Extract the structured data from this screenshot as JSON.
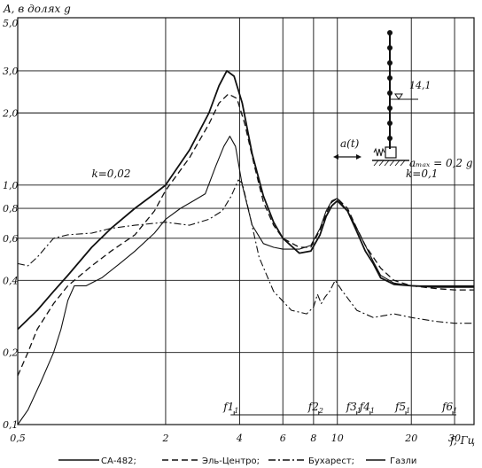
{
  "chart_data": {
    "type": "line",
    "x_scale": "log",
    "y_scale": "log",
    "xlim": [
      0.5,
      36
    ],
    "ylim": [
      0.1,
      5.0
    ],
    "ylabel": "A, в долях g",
    "xlabel": "f, Гц",
    "x_ticks": [
      {
        "v": 0.5,
        "label": "0,5"
      },
      {
        "v": 2,
        "label": "2"
      },
      {
        "v": 4,
        "label": "4"
      },
      {
        "v": 6,
        "label": "6"
      },
      {
        "v": 8,
        "label": "8"
      },
      {
        "v": 10,
        "label": "10"
      },
      {
        "v": 20,
        "label": "20"
      },
      {
        "v": 30,
        "label": "30"
      }
    ],
    "x_grid": [
      0.5,
      2,
      4,
      6,
      8,
      10,
      20,
      30
    ],
    "y_ticks": [
      {
        "v": 0.1,
        "label": "0,1"
      },
      {
        "v": 0.2,
        "label": "0,2"
      },
      {
        "v": 0.4,
        "label": "0,4"
      },
      {
        "v": 0.6,
        "label": "0,6"
      },
      {
        "v": 0.8,
        "label": "0,8"
      },
      {
        "v": 1.0,
        "label": "1,0"
      },
      {
        "v": 2.0,
        "label": "2,0"
      },
      {
        "v": 3.0,
        "label": "3,0"
      },
      {
        "v": 5.0,
        "label": "5,0"
      }
    ],
    "y_grid": [
      0.2,
      0.4,
      0.6,
      0.8,
      1.0,
      2.0,
      3.0,
      5.0
    ],
    "annotations": [
      {
        "text": "k=0,02",
        "x": 1.0,
        "y": 1.08
      },
      {
        "text": "k=0,1",
        "x": 19,
        "y": 1.08
      }
    ],
    "frequency_marks": {
      "labels": [
        "f1",
        "f2",
        "f3",
        "f4",
        "f5",
        "f6"
      ],
      "subscripts": [
        "1",
        "2",
        "1",
        "1",
        "1",
        "1"
      ],
      "x": [
        3.8,
        8.4,
        12.0,
        13.6,
        19.0,
        29.5
      ]
    },
    "inset": {
      "force_label": "a(t)",
      "amax_label": "aₘₐₓ = 0,2 g",
      "height_label": "14,1"
    },
    "legend": [
      "СА-482;",
      "Эль-Центро;",
      "Бухарест;",
      "Газли"
    ],
    "series": [
      {
        "name": "СА-482",
        "style": "solid",
        "width": 1.8,
        "points": [
          [
            0.5,
            0.25
          ],
          [
            0.6,
            0.3
          ],
          [
            0.7,
            0.36
          ],
          [
            0.8,
            0.42
          ],
          [
            1.0,
            0.55
          ],
          [
            1.2,
            0.66
          ],
          [
            1.5,
            0.8
          ],
          [
            1.8,
            0.92
          ],
          [
            2.0,
            1.0
          ],
          [
            2.5,
            1.4
          ],
          [
            3.0,
            2.0
          ],
          [
            3.3,
            2.6
          ],
          [
            3.55,
            3.0
          ],
          [
            3.8,
            2.85
          ],
          [
            4.1,
            2.2
          ],
          [
            4.5,
            1.35
          ],
          [
            5.0,
            0.9
          ],
          [
            5.5,
            0.7
          ],
          [
            6.0,
            0.6
          ],
          [
            7.0,
            0.52
          ],
          [
            7.8,
            0.53
          ],
          [
            8.5,
            0.62
          ],
          [
            9.0,
            0.74
          ],
          [
            9.5,
            0.82
          ],
          [
            10.0,
            0.86
          ],
          [
            11.0,
            0.78
          ],
          [
            12.0,
            0.64
          ],
          [
            13.0,
            0.53
          ],
          [
            14.0,
            0.47
          ],
          [
            15.0,
            0.41
          ],
          [
            17.0,
            0.385
          ],
          [
            20.0,
            0.38
          ],
          [
            25.0,
            0.375
          ],
          [
            30.0,
            0.375
          ],
          [
            36.0,
            0.375
          ]
        ]
      },
      {
        "name": "Эль-Центро",
        "style": "dashed",
        "width": 1.3,
        "points": [
          [
            0.5,
            0.16
          ],
          [
            0.55,
            0.2
          ],
          [
            0.6,
            0.25
          ],
          [
            0.7,
            0.32
          ],
          [
            0.8,
            0.38
          ],
          [
            1.0,
            0.46
          ],
          [
            1.2,
            0.53
          ],
          [
            1.5,
            0.62
          ],
          [
            1.8,
            0.78
          ],
          [
            2.0,
            0.95
          ],
          [
            2.5,
            1.3
          ],
          [
            3.0,
            1.8
          ],
          [
            3.3,
            2.2
          ],
          [
            3.6,
            2.4
          ],
          [
            3.9,
            2.3
          ],
          [
            4.2,
            1.8
          ],
          [
            4.6,
            1.2
          ],
          [
            5.0,
            0.85
          ],
          [
            5.5,
            0.68
          ],
          [
            6.0,
            0.6
          ],
          [
            7.0,
            0.55
          ],
          [
            7.8,
            0.55
          ],
          [
            8.5,
            0.65
          ],
          [
            9.0,
            0.76
          ],
          [
            9.5,
            0.85
          ],
          [
            10.0,
            0.88
          ],
          [
            11.0,
            0.8
          ],
          [
            12.0,
            0.66
          ],
          [
            13.0,
            0.56
          ],
          [
            14.0,
            0.5
          ],
          [
            15.0,
            0.45
          ],
          [
            17.0,
            0.4
          ],
          [
            20.0,
            0.38
          ],
          [
            25.0,
            0.37
          ],
          [
            30.0,
            0.365
          ],
          [
            36.0,
            0.365
          ]
        ]
      },
      {
        "name": "Бухарест",
        "style": "dashdot",
        "width": 1.1,
        "points": [
          [
            0.5,
            0.47
          ],
          [
            0.55,
            0.46
          ],
          [
            0.6,
            0.5
          ],
          [
            0.7,
            0.6
          ],
          [
            0.8,
            0.62
          ],
          [
            1.0,
            0.63
          ],
          [
            1.2,
            0.66
          ],
          [
            1.5,
            0.68
          ],
          [
            2.0,
            0.7
          ],
          [
            2.5,
            0.68
          ],
          [
            3.0,
            0.72
          ],
          [
            3.4,
            0.78
          ],
          [
            3.7,
            0.9
          ],
          [
            3.95,
            1.05
          ],
          [
            4.1,
            1.02
          ],
          [
            4.4,
            0.75
          ],
          [
            4.8,
            0.5
          ],
          [
            5.5,
            0.36
          ],
          [
            6.5,
            0.3
          ],
          [
            7.5,
            0.29
          ],
          [
            8.0,
            0.31
          ],
          [
            8.3,
            0.35
          ],
          [
            8.6,
            0.32
          ],
          [
            8.9,
            0.34
          ],
          [
            9.3,
            0.36
          ],
          [
            9.8,
            0.4
          ],
          [
            10.5,
            0.36
          ],
          [
            12.0,
            0.3
          ],
          [
            14.0,
            0.28
          ],
          [
            17.0,
            0.29
          ],
          [
            20.0,
            0.28
          ],
          [
            25.0,
            0.27
          ],
          [
            30.0,
            0.265
          ],
          [
            36.0,
            0.265
          ]
        ]
      },
      {
        "name": "Газли",
        "style": "solid",
        "width": 1.1,
        "points": [
          [
            0.5,
            0.1
          ],
          [
            0.55,
            0.115
          ],
          [
            0.62,
            0.15
          ],
          [
            0.7,
            0.2
          ],
          [
            0.75,
            0.25
          ],
          [
            0.8,
            0.33
          ],
          [
            0.85,
            0.38
          ],
          [
            0.95,
            0.38
          ],
          [
            1.1,
            0.41
          ],
          [
            1.3,
            0.47
          ],
          [
            1.5,
            0.53
          ],
          [
            1.8,
            0.63
          ],
          [
            2.0,
            0.72
          ],
          [
            2.3,
            0.8
          ],
          [
            2.6,
            0.86
          ],
          [
            2.9,
            0.92
          ],
          [
            3.2,
            1.2
          ],
          [
            3.45,
            1.45
          ],
          [
            3.65,
            1.6
          ],
          [
            3.85,
            1.45
          ],
          [
            4.1,
            1.0
          ],
          [
            4.5,
            0.68
          ],
          [
            5.0,
            0.57
          ],
          [
            5.5,
            0.55
          ],
          [
            6.0,
            0.54
          ],
          [
            7.0,
            0.54
          ],
          [
            7.8,
            0.56
          ],
          [
            8.5,
            0.66
          ],
          [
            9.0,
            0.78
          ],
          [
            9.5,
            0.86
          ],
          [
            10.0,
            0.88
          ],
          [
            11.0,
            0.78
          ],
          [
            12.0,
            0.66
          ],
          [
            13.0,
            0.56
          ],
          [
            14.0,
            0.48
          ],
          [
            15.0,
            0.42
          ],
          [
            17.0,
            0.39
          ],
          [
            20.0,
            0.38
          ],
          [
            25.0,
            0.38
          ],
          [
            30.0,
            0.38
          ],
          [
            36.0,
            0.38
          ]
        ]
      }
    ]
  }
}
